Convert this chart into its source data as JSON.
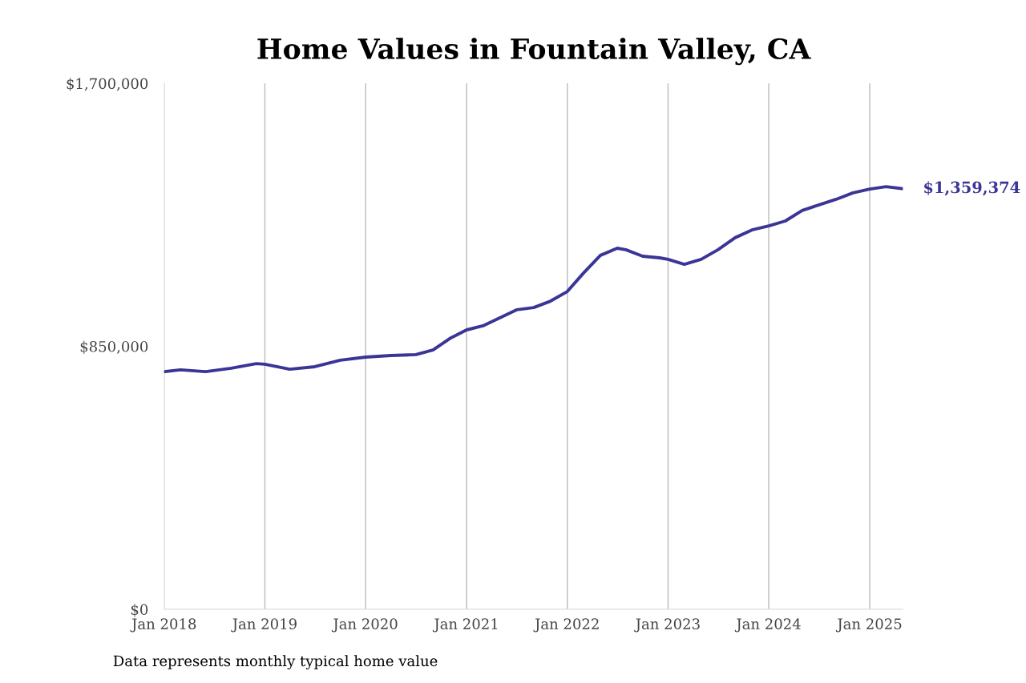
{
  "chart_data": {
    "type": "line",
    "title": "Home Values in Fountain Valley, CA",
    "x": [
      "2018-01",
      "2018-03",
      "2018-06",
      "2018-09",
      "2018-12",
      "2019-01",
      "2019-04",
      "2019-07",
      "2019-10",
      "2020-01",
      "2020-04",
      "2020-07",
      "2020-09",
      "2020-11",
      "2021-01",
      "2021-03",
      "2021-05",
      "2021-07",
      "2021-09",
      "2021-11",
      "2022-01",
      "2022-03",
      "2022-05",
      "2022-07",
      "2022-08",
      "2022-10",
      "2022-12",
      "2023-01",
      "2023-03",
      "2023-05",
      "2023-07",
      "2023-09",
      "2023-11",
      "2024-01",
      "2024-03",
      "2024-05",
      "2024-07",
      "2024-09",
      "2024-11",
      "2025-01",
      "2025-03",
      "2025-05"
    ],
    "series": [
      {
        "color": "#3a3596",
        "values": [
          768000,
          774000,
          768000,
          779000,
          794000,
          792000,
          776000,
          784000,
          805000,
          815000,
          820000,
          823000,
          838000,
          875000,
          903000,
          916000,
          942000,
          968000,
          975000,
          996000,
          1027000,
          1087000,
          1144000,
          1167000,
          1162000,
          1141000,
          1136000,
          1131000,
          1115000,
          1131000,
          1162000,
          1201000,
          1226000,
          1239000,
          1255000,
          1289000,
          1307000,
          1325000,
          1346000,
          1358000,
          1366000,
          1359374
        ]
      }
    ],
    "ylim": [
      0,
      1700000
    ],
    "yticks": [
      {
        "value": 0,
        "label": "$0"
      },
      {
        "value": 850000,
        "label": "$850,000"
      },
      {
        "value": 1700000,
        "label": "$1,700,000"
      }
    ],
    "xticks": [
      {
        "value": "2018-01",
        "label": "Jan 2018"
      },
      {
        "value": "2019-01",
        "label": "Jan 2019"
      },
      {
        "value": "2020-01",
        "label": "Jan 2020"
      },
      {
        "value": "2021-01",
        "label": "Jan 2021"
      },
      {
        "value": "2022-01",
        "label": "Jan 2022"
      },
      {
        "value": "2023-01",
        "label": "Jan 2023"
      },
      {
        "value": "2024-01",
        "label": "Jan 2024"
      },
      {
        "value": "2025-01",
        "label": "Jan 2025"
      }
    ],
    "xlim": [
      "2018-01",
      "2025-05"
    ],
    "grid": "x",
    "annotations": [
      {
        "text": "$1,359,374",
        "x": "2025-05",
        "y": 1359374
      },
      "Data represents monthly typical home value"
    ]
  }
}
